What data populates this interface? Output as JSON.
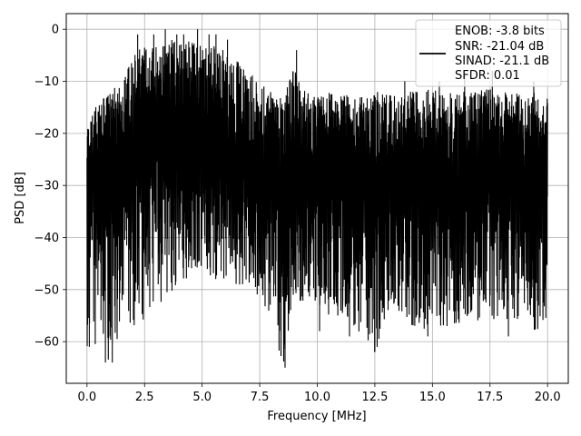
{
  "chart_data": {
    "type": "line",
    "title": "",
    "xlabel": "Frequency [MHz]",
    "ylabel": "PSD [dB]",
    "xlim": [
      -0.9,
      20.9
    ],
    "ylim": [
      -68,
      3
    ],
    "xticks": [
      0.0,
      2.5,
      5.0,
      7.5,
      10.0,
      12.5,
      15.0,
      17.5,
      20.0
    ],
    "xtick_labels": [
      "0.0",
      "2.5",
      "5.0",
      "7.5",
      "10.0",
      "12.5",
      "15.0",
      "17.5",
      "20.0"
    ],
    "yticks": [
      0,
      -10,
      -20,
      -30,
      -40,
      -50,
      -60
    ],
    "ytick_labels": [
      "0",
      "−10",
      "−20",
      "−30",
      "−40",
      "−50",
      "−60"
    ],
    "grid": true,
    "legend_position": "top-right",
    "series": [
      {
        "color": "#000000",
        "style": "dense noise",
        "x": [
          0.0,
          0.5,
          1.0,
          1.5,
          2.0,
          2.5,
          3.0,
          3.5,
          4.0,
          4.5,
          5.0,
          5.5,
          6.0,
          6.5,
          7.0,
          7.5,
          8.0,
          8.5,
          9.0,
          9.5,
          10.0,
          10.5,
          11.0,
          11.5,
          12.0,
          12.5,
          13.0,
          13.5,
          14.0,
          14.5,
          15.0,
          15.5,
          16.0,
          16.5,
          17.0,
          17.5,
          18.0,
          18.5,
          19.0,
          19.5,
          20.0
        ],
        "upper": [
          -18,
          -14,
          -12,
          -10,
          -5,
          -3,
          -2,
          -2,
          -2,
          -2,
          -3,
          -3,
          -4,
          -6,
          -8,
          -10,
          -12,
          -13,
          -7,
          -12,
          -13,
          -12,
          -12,
          -13,
          -13,
          -12,
          -12,
          -13,
          -12,
          -12,
          -11,
          -12,
          -12,
          -11,
          -12,
          -11,
          -12,
          -12,
          -13,
          -12,
          -13
        ],
        "lower": [
          -61,
          -63,
          -64,
          -58,
          -57,
          -56,
          -53,
          -52,
          -50,
          -47,
          -47,
          -48,
          -48,
          -50,
          -50,
          -52,
          -57,
          -65,
          -52,
          -53,
          -53,
          -56,
          -55,
          -57,
          -60,
          -62,
          -56,
          -56,
          -57,
          -58,
          -57,
          -58,
          -57,
          -56,
          -56,
          -57,
          -56,
          -57,
          -57,
          -58,
          -58
        ],
        "center": [
          -32,
          -30,
          -29,
          -28,
          -26,
          -25,
          -24,
          -24,
          -24,
          -24,
          -25,
          -25,
          -26,
          -27,
          -28,
          -29,
          -31,
          -32,
          -28,
          -31,
          -31,
          -31,
          -31,
          -32,
          -32,
          -32,
          -31,
          -31,
          -31,
          -31,
          -31,
          -31,
          -31,
          -31,
          -31,
          -31,
          -31,
          -31,
          -31,
          -31,
          -31
        ],
        "upper_spikes": [
          [
            2.2,
            -1
          ],
          [
            2.9,
            -1
          ],
          [
            3.4,
            0
          ],
          [
            3.9,
            -1
          ],
          [
            4.2,
            -1
          ],
          [
            4.8,
            0
          ],
          [
            5.3,
            -1
          ],
          [
            5.6,
            -1
          ],
          [
            6.1,
            -2
          ],
          [
            9.1,
            -4
          ],
          [
            13.8,
            -10
          ],
          [
            15.3,
            -10
          ],
          [
            16.4,
            -9
          ],
          [
            17.6,
            -8
          ],
          [
            19.4,
            -10
          ]
        ],
        "lower_spikes": [
          [
            0.1,
            -61
          ],
          [
            0.8,
            -64
          ],
          [
            1.1,
            -64
          ],
          [
            8.6,
            -65
          ],
          [
            10.1,
            -58
          ],
          [
            11.4,
            -59
          ],
          [
            12.5,
            -62
          ],
          [
            12.6,
            -61
          ],
          [
            14.8,
            -59
          ],
          [
            18.3,
            -59
          ]
        ]
      }
    ],
    "legend": [
      "ENOB: -3.8 bits",
      "SNR: -21.04 dB",
      "SINAD: -21.1 dB",
      "SFDR: 0.01"
    ]
  }
}
